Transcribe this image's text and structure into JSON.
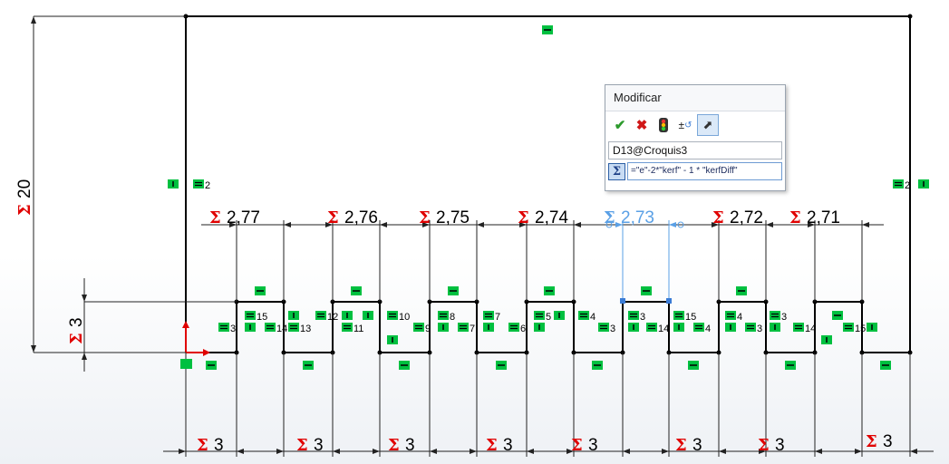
{
  "dialog": {
    "title": "Modificar",
    "name_field": "D13@Croquis3",
    "expression": "\"e\"-2*\"kerf\" - 1 * \"kerfDiff\"",
    "buttons": [
      "accept-check",
      "cancel-x",
      "rebuild-traffic-light",
      "reverse-dimension",
      "mark-for-drawing"
    ]
  },
  "dimensions": {
    "height_left": "20",
    "tab_height": "3",
    "top_widths": [
      {
        "label": "2,77",
        "active": false
      },
      {
        "label": "2,76",
        "active": false
      },
      {
        "label": "2,75",
        "active": false
      },
      {
        "label": "2,74",
        "active": false
      },
      {
        "label": "2,73",
        "active": true
      },
      {
        "label": "2,72",
        "active": false
      },
      {
        "label": "2,71",
        "active": false
      }
    ],
    "bottom_widths": [
      "3",
      "3",
      "3",
      "3",
      "3",
      "3",
      "3",
      "3"
    ]
  },
  "relations": {
    "left_eq_index": "2",
    "right_eq_index": "2",
    "pairs_left_to_right": [
      "3",
      "15",
      "13",
      "14",
      "12",
      "13",
      "12",
      "11",
      "11",
      "10",
      "10",
      "9",
      "9",
      "8",
      "8",
      "7",
      "7",
      "6",
      "6",
      "5",
      "5",
      "4",
      "4",
      "3",
      "3",
      "14",
      "14",
      "15"
    ]
  },
  "colors": {
    "relation_badge": "#00c040",
    "sigma": "#e00000",
    "active_dimension": "#5aa0e6",
    "sketch_line": "#000000"
  }
}
